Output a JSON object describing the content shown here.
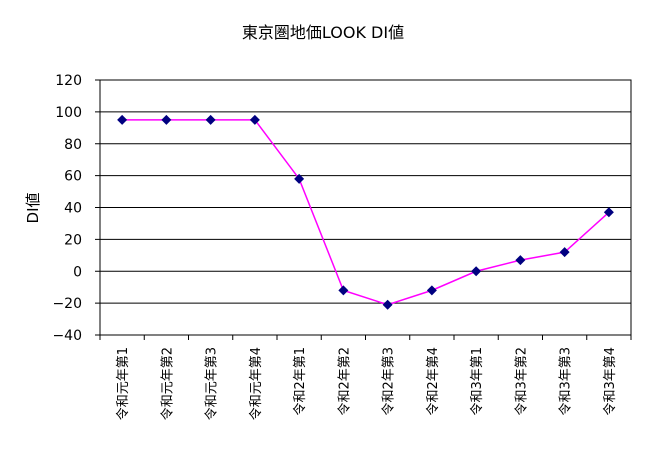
{
  "chart_data": {
    "type": "line",
    "title": "東京圏地価LOOK DI値",
    "xlabel": "",
    "ylabel": "DI値",
    "categories": [
      "令和元年第1",
      "令和元年第2",
      "令和元年第3",
      "令和元年第4",
      "令和2年第1",
      "令和2年第2",
      "令和2年第3",
      "令和2年第4",
      "令和3年第1",
      "令和3年第2",
      "令和3年第3",
      "令和3年第4"
    ],
    "series": [
      {
        "values": [
          95,
          95,
          95,
          95,
          58,
          -12,
          -21,
          -12,
          0,
          7,
          12,
          37
        ]
      }
    ],
    "ylim": [
      -40,
      120
    ],
    "yticks": [
      120,
      100,
      80,
      60,
      40,
      20,
      0,
      -20,
      -40
    ],
    "grid": true,
    "legend": "none",
    "colors": {
      "line": "#ff00ff",
      "marker": "#000080",
      "grid": "#000000"
    }
  }
}
